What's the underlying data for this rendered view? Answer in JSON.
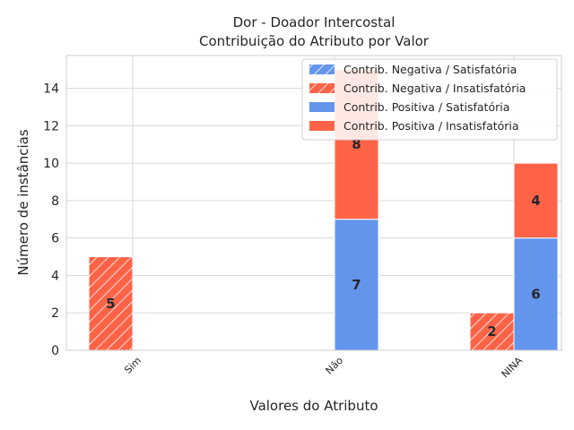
{
  "chart_data": {
    "type": "bar",
    "title": "Dor - Doador Intercostal",
    "subtitle": "Contribuição do Atributo por Valor",
    "xlabel": "Valores do Atributo",
    "ylabel": "Número de instâncias",
    "categories": [
      "Sim",
      "Não",
      "NINA"
    ],
    "ylim": [
      0,
      15.75
    ],
    "yticks": [
      0,
      2,
      4,
      6,
      8,
      10,
      12,
      14
    ],
    "grid": true,
    "legend_position": "top-right",
    "colors": {
      "satisfatoria": "#6495ED",
      "insatisfatoria": "#FF6347"
    },
    "series": [
      {
        "name": "Contrib. Negativa / Satisfatória",
        "group": "negativa",
        "hatch": true,
        "color": "#6495ED",
        "values": [
          0,
          0,
          0
        ]
      },
      {
        "name": "Contrib. Negativa / Insatisfatória",
        "group": "negativa",
        "hatch": true,
        "color": "#FF6347",
        "values": [
          5,
          0,
          2
        ]
      },
      {
        "name": "Contrib. Positiva / Satisfatória",
        "group": "positiva",
        "hatch": false,
        "color": "#6495ED",
        "values": [
          0,
          7,
          6
        ]
      },
      {
        "name": "Contrib. Positiva / Insatisfatória",
        "group": "positiva",
        "hatch": false,
        "color": "#FF6347",
        "values": [
          0,
          8,
          4
        ]
      }
    ]
  }
}
